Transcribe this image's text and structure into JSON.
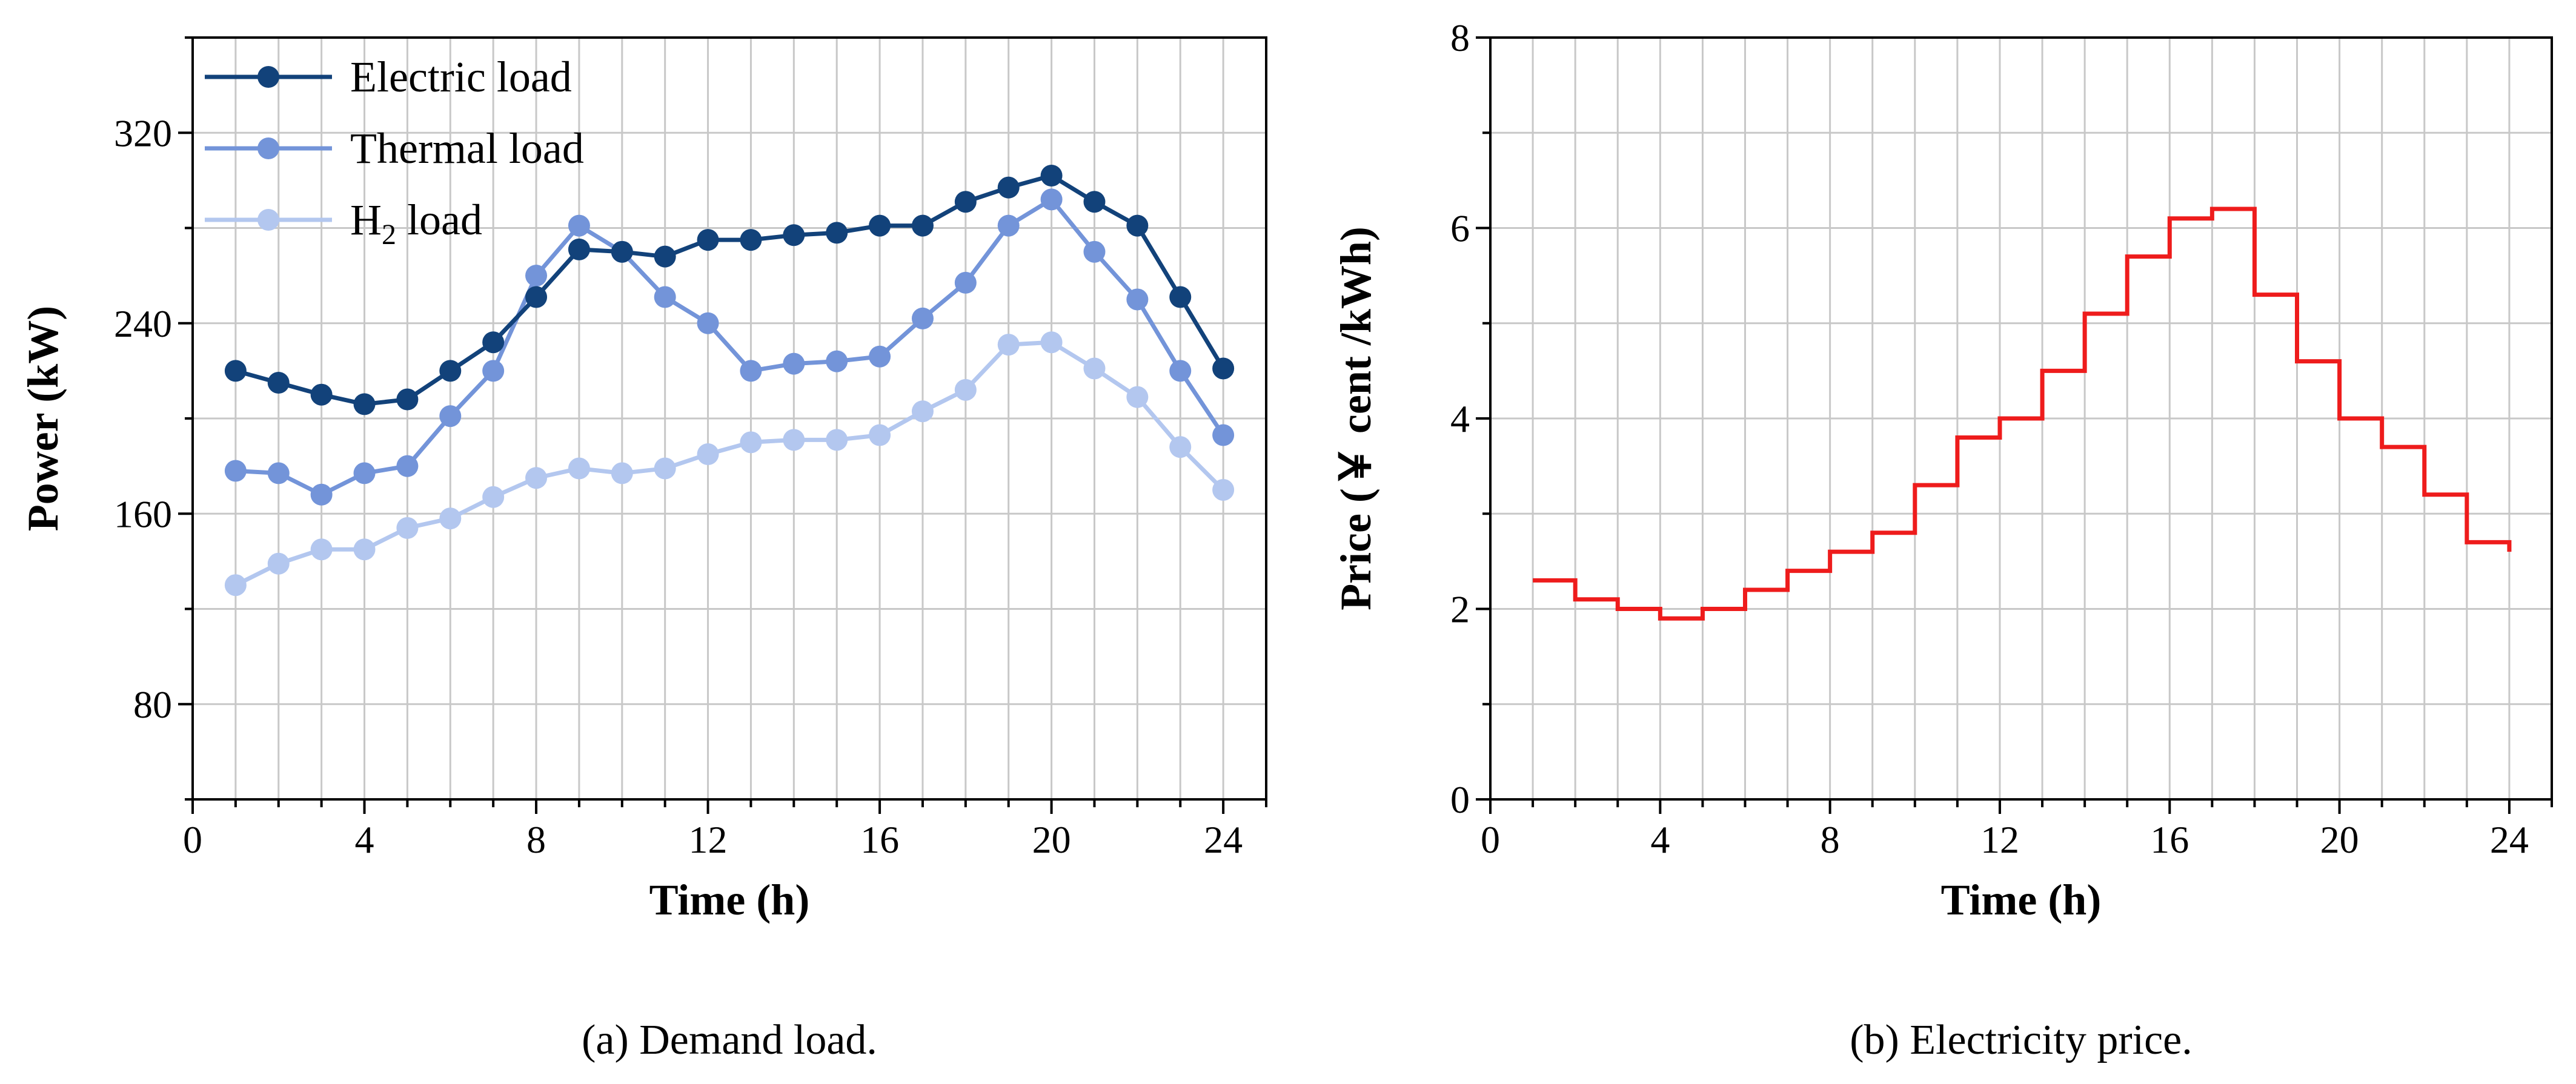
{
  "colors": {
    "electric": "#12427a",
    "thermal": "#7394d9",
    "h2": "#b3c7ef",
    "price": "#ee1c1c"
  },
  "chart_data": [
    {
      "type": "line",
      "xlabel": "Time (h)",
      "ylabel": "Power (kW)",
      "caption": "(a) Demand load.",
      "xlim": [
        0,
        25
      ],
      "ylim": [
        40,
        360
      ],
      "xticks": [
        0,
        4,
        8,
        12,
        16,
        20,
        24
      ],
      "yticks": [
        80,
        160,
        240,
        320
      ],
      "grid": true,
      "legend_position": "top-left",
      "x": [
        1,
        2,
        3,
        4,
        5,
        6,
        7,
        8,
        9,
        10,
        11,
        12,
        13,
        14,
        15,
        16,
        17,
        18,
        19,
        20,
        21,
        22,
        23,
        24
      ],
      "series": [
        {
          "name": "Electric load",
          "name_main": "Electric load",
          "name_sub": "",
          "name_rest": "",
          "color_key": "electric",
          "values": [
            220,
            215,
            210,
            206,
            208,
            220,
            232,
            251,
            271,
            270,
            268,
            275,
            275,
            277,
            278,
            281,
            281,
            291,
            297,
            302,
            291,
            281,
            251,
            221
          ]
        },
        {
          "name": "Thermal load",
          "name_main": "Thermal load",
          "name_sub": "",
          "name_rest": "",
          "color_key": "thermal",
          "values": [
            178,
            177,
            168,
            177,
            180,
            201,
            220,
            260,
            281,
            270,
            251,
            240,
            220,
            223,
            224,
            226,
            242,
            257,
            281,
            292,
            270,
            250,
            220,
            193
          ]
        },
        {
          "name": "H2 load",
          "name_main": "H",
          "name_sub": "2",
          "name_rest": " load",
          "color_key": "h2",
          "values": [
            130,
            139,
            145,
            145,
            154,
            158,
            167,
            175,
            179,
            177,
            179,
            185,
            190,
            191,
            191,
            193,
            203,
            212,
            231,
            232,
            221,
            209,
            188,
            170
          ]
        }
      ]
    },
    {
      "type": "line",
      "step": true,
      "xlabel": "Time (h)",
      "ylabel": "Price (￥ cent /kWh)",
      "caption": "(b) Electricity price.",
      "xlim": [
        0,
        25
      ],
      "ylim": [
        0,
        8
      ],
      "xticks": [
        0,
        4,
        8,
        12,
        16,
        20,
        24
      ],
      "yticks": [
        0,
        2,
        4,
        6,
        8
      ],
      "grid": true,
      "x": [
        1,
        2,
        3,
        4,
        5,
        6,
        7,
        8,
        9,
        10,
        11,
        12,
        13,
        14,
        15,
        16,
        17,
        18,
        19,
        20,
        21,
        22,
        23,
        24
      ],
      "series": [
        {
          "name": "Electricity price",
          "color_key": "price",
          "values": [
            2.3,
            2.1,
            2.0,
            1.9,
            2.0,
            2.2,
            2.4,
            2.6,
            2.8,
            3.3,
            3.8,
            4.0,
            4.5,
            5.1,
            5.7,
            6.1,
            6.2,
            5.3,
            4.6,
            4.0,
            3.7,
            3.2,
            2.7,
            2.6
          ]
        }
      ]
    }
  ]
}
